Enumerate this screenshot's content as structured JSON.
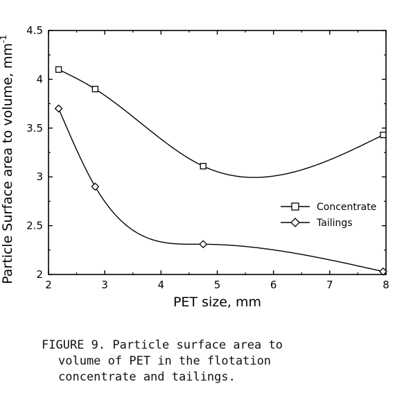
{
  "chart_data": {
    "type": "line",
    "x_label": "PET size, mm",
    "y_label": "Particle Surface area to volume, mm",
    "y_label_superscript": "-1",
    "xlim": [
      2,
      8
    ],
    "ylim": [
      2,
      4.5
    ],
    "x_ticks": [
      "2",
      "3",
      "4",
      "5",
      "6",
      "7",
      "8"
    ],
    "y_ticks": [
      "2",
      "2.5",
      "3",
      "3.5",
      "4",
      "4.5"
    ],
    "grid": false,
    "legend_position": "right",
    "series": [
      {
        "name": "Concentrate",
        "marker": "square",
        "points": [
          {
            "x": 2.18,
            "y": 4.1
          },
          {
            "x": 2.83,
            "y": 3.9
          },
          {
            "x": 4.75,
            "y": 3.11
          },
          {
            "x": 7.95,
            "y": 3.43
          }
        ]
      },
      {
        "name": "Tailings",
        "marker": "diamond",
        "points": [
          {
            "x": 2.18,
            "y": 3.7
          },
          {
            "x": 2.83,
            "y": 2.9
          },
          {
            "x": 4.75,
            "y": 2.31
          },
          {
            "x": 7.95,
            "y": 2.03
          }
        ]
      }
    ]
  },
  "caption": {
    "line1": "FIGURE 9.  Particle surface area to",
    "line2": "volume of PET in the flotation",
    "line3": "concentrate and tailings."
  }
}
